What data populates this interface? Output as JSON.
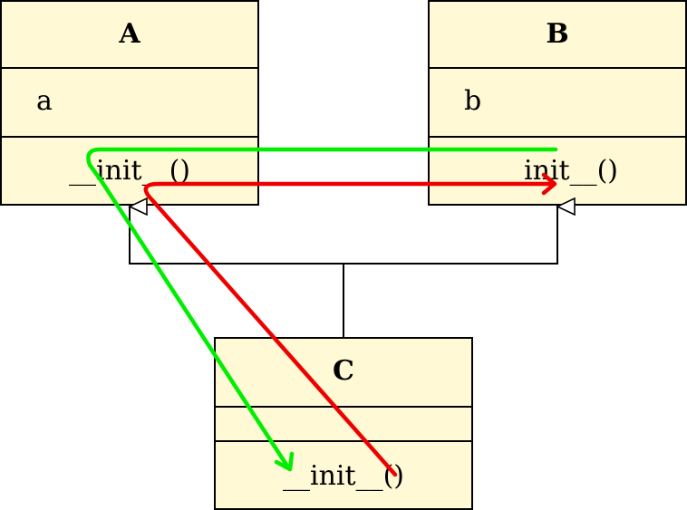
{
  "classes": {
    "a": {
      "name": "A",
      "attribute": "a",
      "method": "__init__()"
    },
    "b": {
      "name": "B",
      "attribute": "b",
      "method": "__init__()"
    },
    "c": {
      "name": "C",
      "attribute": "",
      "method": "__init__()"
    }
  },
  "colors": {
    "class_fill": "#fff9d5",
    "border": "#000000",
    "green_call_path": "#00ee00",
    "red_call_path": "#ee0000"
  },
  "relations": [
    {
      "type": "inheritance",
      "from": "C",
      "to": "A"
    },
    {
      "type": "inheritance",
      "from": "C",
      "to": "B"
    }
  ],
  "call_paths": [
    {
      "name": "green",
      "from": "B.__init__()",
      "to": "C.__init__()",
      "via": "A.__init__()"
    },
    {
      "name": "red",
      "from": "C.__init__()",
      "to": "B.__init__()",
      "via": "A.__init__()"
    }
  ]
}
